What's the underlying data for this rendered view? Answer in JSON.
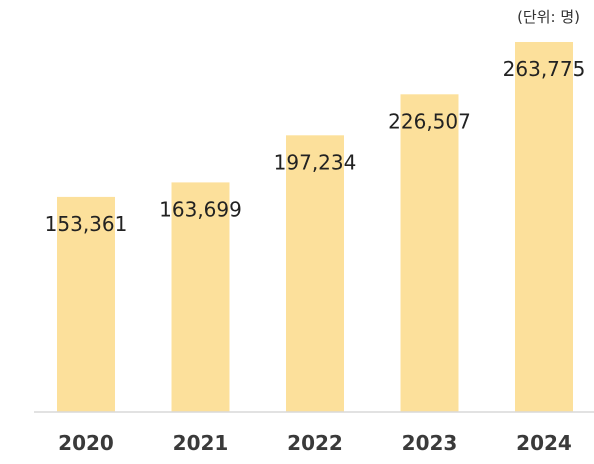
{
  "chart_data": {
    "type": "bar",
    "unit_note": "(단위: 명)",
    "categories": [
      "2020",
      "2021",
      "2022",
      "2023",
      "2024"
    ],
    "values": [
      153361,
      163699,
      197234,
      226507,
      263775
    ],
    "value_labels": [
      "153,361",
      "163,699",
      "197,234",
      "226,507",
      "263,775"
    ],
    "ylim": [
      0,
      263775
    ],
    "grid": false,
    "colors": {
      "bar": "#FCE09B",
      "axis": "#D9D9D9"
    }
  }
}
